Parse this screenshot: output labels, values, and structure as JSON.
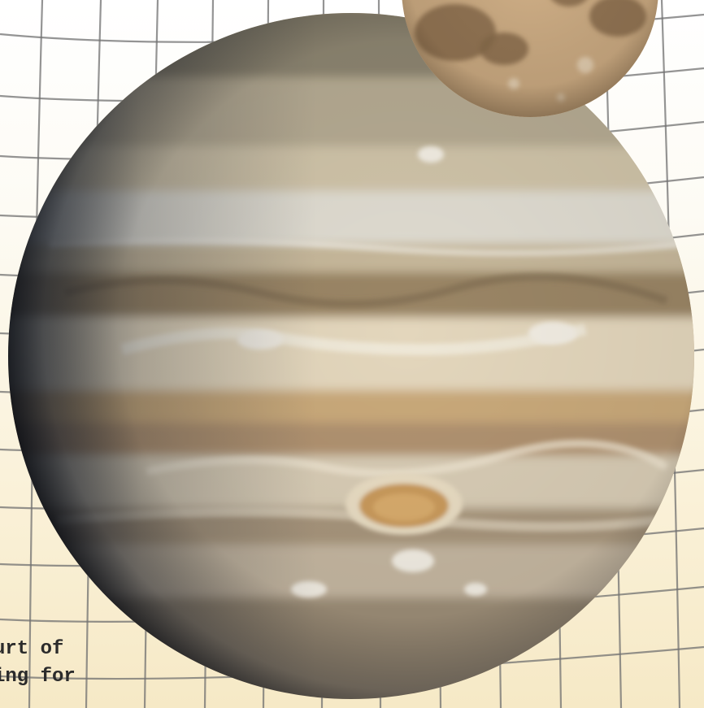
{
  "caption": {
    "line1": "urt of",
    "line2": "ing for"
  },
  "colors": {
    "background": "#fbf6e6",
    "grid": "#6a6a6a",
    "planet_band_light": "#e9dfca",
    "planet_band_tan": "#c8ad84",
    "planet_band_brown": "#9b8463",
    "moon": "#c9a67d"
  },
  "icons": {
    "planet": "jupiter-planet-icon",
    "moon": "moon-icon"
  }
}
